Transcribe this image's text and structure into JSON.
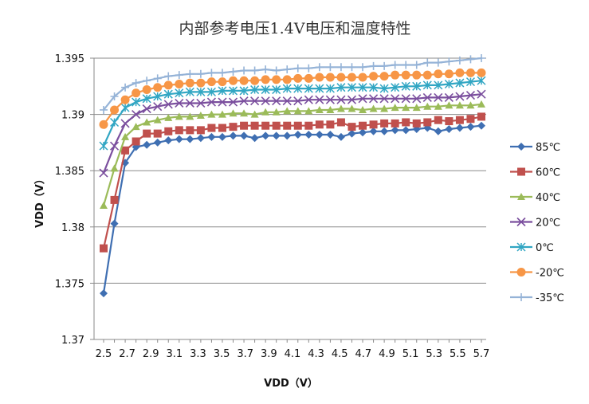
{
  "chart_data": {
    "type": "line",
    "title": "内部参考电压1.4V电压和温度特性",
    "xlabel": "VDD（V）",
    "ylabel": "VDD（V）",
    "x_ticks": [
      "2.5",
      "2.7",
      "2.9",
      "3.1",
      "3.3",
      "3.5",
      "3.7",
      "3.9",
      "4.1",
      "4.3",
      "4.5",
      "4.7",
      "4.9",
      "5.1",
      "5.3",
      "5.5",
      "5.7"
    ],
    "ylim": [
      1.37,
      1.395
    ],
    "y_ticks": [
      "1.37",
      "1.375",
      "1.38",
      "1.385",
      "1.39",
      "1.395"
    ],
    "grid": "horizontal",
    "legend_position": "right",
    "series": [
      {
        "name": "85℃",
        "color": "#3f6fb2",
        "marker": "diamond",
        "values": [
          1.3741,
          1.3803,
          1.3857,
          1.3871,
          1.3873,
          1.3875,
          1.3877,
          1.3878,
          1.3878,
          1.3879,
          1.388,
          1.388,
          1.3881,
          1.3881,
          1.3879,
          1.3881,
          1.3881,
          1.3881,
          1.3882,
          1.3882,
          1.3882,
          1.3882,
          1.388,
          1.3883,
          1.3884,
          1.3885,
          1.3885,
          1.3886,
          1.3886,
          1.3887,
          1.3888,
          1.3885,
          1.3887,
          1.3888,
          1.3889,
          1.389
        ]
      },
      {
        "name": "60℃",
        "color": "#c0504d",
        "marker": "square",
        "values": [
          1.3781,
          1.3824,
          1.3868,
          1.3876,
          1.3883,
          1.3883,
          1.3885,
          1.3886,
          1.3886,
          1.3886,
          1.3888,
          1.3888,
          1.3889,
          1.389,
          1.389,
          1.389,
          1.389,
          1.389,
          1.389,
          1.389,
          1.3891,
          1.3891,
          1.3893,
          1.3889,
          1.389,
          1.3891,
          1.3892,
          1.3892,
          1.3893,
          1.3892,
          1.3893,
          1.3895,
          1.3894,
          1.3895,
          1.3896,
          1.3898
        ]
      },
      {
        "name": "40℃",
        "color": "#9bbb59",
        "marker": "triangle",
        "values": [
          1.3819,
          1.3852,
          1.388,
          1.3889,
          1.3893,
          1.3895,
          1.3897,
          1.3898,
          1.3898,
          1.3899,
          1.39,
          1.39,
          1.3901,
          1.3901,
          1.39,
          1.3902,
          1.3902,
          1.3903,
          1.3903,
          1.3903,
          1.3904,
          1.3904,
          1.3905,
          1.3905,
          1.3904,
          1.3905,
          1.3905,
          1.3906,
          1.3906,
          1.3906,
          1.3907,
          1.3907,
          1.3908,
          1.3908,
          1.3908,
          1.3909
        ]
      },
      {
        "name": "20℃",
        "color": "#7b4f9e",
        "marker": "x",
        "values": [
          1.3848,
          1.3872,
          1.3892,
          1.39,
          1.3905,
          1.3907,
          1.3909,
          1.391,
          1.391,
          1.391,
          1.3911,
          1.3911,
          1.3911,
          1.3912,
          1.3912,
          1.3912,
          1.3912,
          1.3912,
          1.3912,
          1.3913,
          1.3913,
          1.3913,
          1.3913,
          1.3913,
          1.3914,
          1.3914,
          1.3914,
          1.3914,
          1.3914,
          1.3914,
          1.3915,
          1.3915,
          1.3915,
          1.3916,
          1.3917,
          1.3918
        ]
      },
      {
        "name": "0℃",
        "color": "#31a6c3",
        "marker": "asterisk",
        "values": [
          1.3872,
          1.3893,
          1.3906,
          1.3911,
          1.3914,
          1.3916,
          1.3918,
          1.3919,
          1.392,
          1.392,
          1.392,
          1.3921,
          1.3921,
          1.3921,
          1.3922,
          1.3922,
          1.3922,
          1.3923,
          1.3923,
          1.3923,
          1.3923,
          1.3923,
          1.3924,
          1.3924,
          1.3924,
          1.3924,
          1.3923,
          1.3924,
          1.3925,
          1.3925,
          1.3926,
          1.3926,
          1.3927,
          1.3928,
          1.3929,
          1.393
        ]
      },
      {
        "name": "-20℃",
        "color": "#f79646",
        "marker": "circle",
        "values": [
          1.3891,
          1.3904,
          1.3913,
          1.3919,
          1.3922,
          1.3924,
          1.3926,
          1.3927,
          1.3928,
          1.3928,
          1.3929,
          1.3929,
          1.393,
          1.393,
          1.393,
          1.3931,
          1.3931,
          1.3931,
          1.3932,
          1.3932,
          1.3933,
          1.3933,
          1.3933,
          1.3933,
          1.3933,
          1.3934,
          1.3934,
          1.3935,
          1.3935,
          1.3935,
          1.3935,
          1.3936,
          1.3936,
          1.3937,
          1.3937,
          1.3937
        ]
      },
      {
        "name": "-35℃",
        "color": "#95b3d7",
        "marker": "plus",
        "values": [
          1.3904,
          1.3916,
          1.3924,
          1.3928,
          1.393,
          1.3932,
          1.3934,
          1.3935,
          1.3936,
          1.3936,
          1.3937,
          1.3937,
          1.3938,
          1.3939,
          1.3939,
          1.394,
          1.3939,
          1.394,
          1.3941,
          1.3941,
          1.3942,
          1.3942,
          1.3942,
          1.3942,
          1.3942,
          1.3943,
          1.3943,
          1.3944,
          1.3944,
          1.3944,
          1.3946,
          1.3946,
          1.3947,
          1.3948,
          1.3949,
          1.395
        ]
      }
    ]
  }
}
